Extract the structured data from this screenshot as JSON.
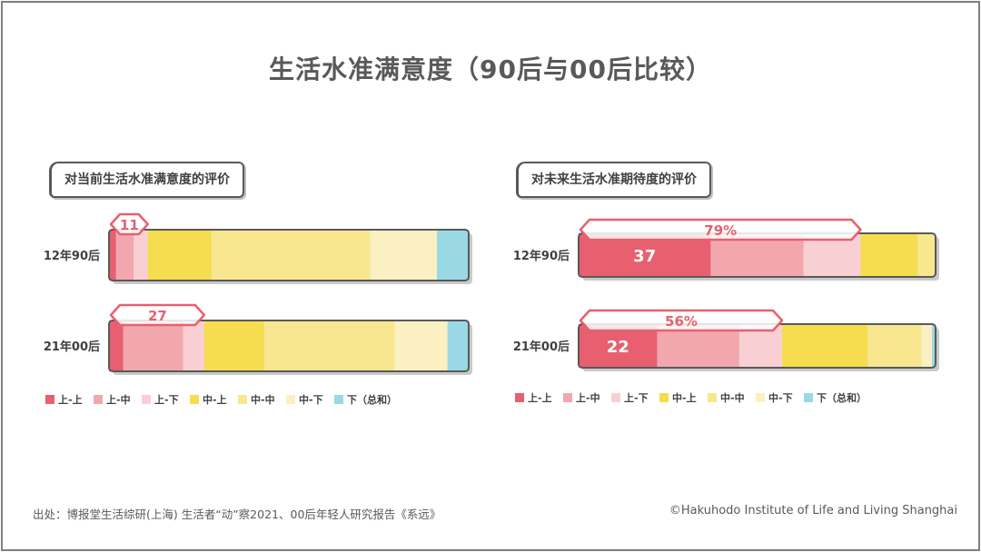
{
  "title": "生活水准满意度（90后与00后比较）",
  "source": "出处：博报堂生活综研(上海) 生活者“动”察2021、00后年轻人研究报告《系远》",
  "copyright": "©Hakuhodo Institute of Life and Living Shanghai",
  "colors": {
    "上-上": "#e8606f",
    "上-中": "#f2a7ae",
    "上-下": "#f8d0d4",
    "中-上": "#f5dd4f",
    "中-中": "#f8e78e",
    "中-下": "#fbf0c2",
    "下": "#9bd8e6",
    "outline": "#595959",
    "arrow": "#e8606f"
  },
  "chart_data": [
    {
      "type": "bar",
      "orientation": "horizontal",
      "stacked": true,
      "title": "对当前生活水准满意度的评价",
      "categories": [
        "12年90后",
        "21年00后"
      ],
      "series": [
        {
          "name": "上-上",
          "values": [
            2,
            4
          ]
        },
        {
          "name": "上-中",
          "values": [
            5,
            17
          ]
        },
        {
          "name": "上-下",
          "values": [
            4,
            6
          ]
        },
        {
          "name": "中-上",
          "values": [
            18,
            17
          ]
        },
        {
          "name": "中-中",
          "values": [
            45,
            37
          ]
        },
        {
          "name": "中-下",
          "values": [
            19,
            15
          ]
        },
        {
          "name": "下",
          "values": [
            9,
            6
          ]
        }
      ],
      "annotations": [
        {
          "category": "12年90后",
          "label": "11",
          "spans": [
            "上-上",
            "上-中",
            "上-下"
          ]
        },
        {
          "category": "21年00后",
          "label": "27",
          "spans": [
            "上-上",
            "上-中",
            "上-下"
          ]
        }
      ],
      "legend": [
        "上-上",
        "上-中",
        "上-下",
        "中-上",
        "中-中",
        "中-下",
        "下（总和）"
      ]
    },
    {
      "type": "bar",
      "orientation": "horizontal",
      "stacked": true,
      "title": "对未来生活水准期待度的评价",
      "categories": [
        "12年90后",
        "21年00后"
      ],
      "series": [
        {
          "name": "上-上",
          "values": [
            37,
            22
          ]
        },
        {
          "name": "上-中",
          "values": [
            26,
            23
          ]
        },
        {
          "name": "上-下",
          "values": [
            16,
            12
          ]
        },
        {
          "name": "中-上",
          "values": [
            16,
            24
          ]
        },
        {
          "name": "中-中",
          "values": [
            5,
            15
          ]
        },
        {
          "name": "中-下",
          "values": [
            0,
            3
          ]
        },
        {
          "name": "下",
          "values": [
            0,
            1
          ]
        }
      ],
      "segment_labels": [
        {
          "category": "12年90后",
          "series": "上-上",
          "label": "37"
        },
        {
          "category": "21年00后",
          "series": "上-上",
          "label": "22"
        }
      ],
      "annotations": [
        {
          "category": "12年90后",
          "label": "79%",
          "spans": [
            "上-上",
            "上-中",
            "上-下"
          ]
        },
        {
          "category": "21年00后",
          "label": "56%",
          "spans": [
            "上-上",
            "上-中",
            "上-下"
          ]
        }
      ],
      "legend": [
        "上-上",
        "上-中",
        "上-下",
        "中-上",
        "中-中",
        "中-下",
        "下（总和）"
      ]
    }
  ]
}
